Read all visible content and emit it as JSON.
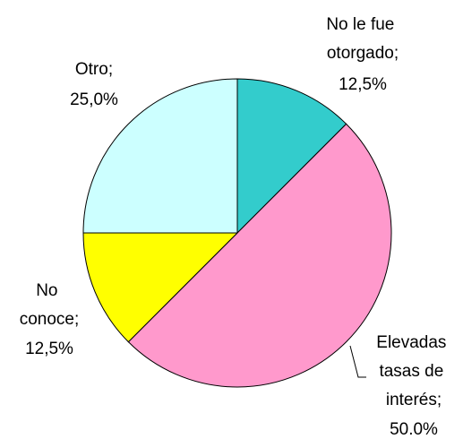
{
  "chart_data": {
    "type": "pie",
    "categories": [
      "No le fue otorgado;",
      "Elevadas tasas de interés;",
      "No conoce;",
      "Otro;"
    ],
    "values": [
      12.5,
      50,
      12.5,
      25
    ],
    "value_labels": [
      "12,5%",
      "50.0%",
      "12,5%",
      "25,0%"
    ],
    "colors": [
      "#33cccc",
      "#ff99cc",
      "#ffff00",
      "#ccffff"
    ]
  }
}
